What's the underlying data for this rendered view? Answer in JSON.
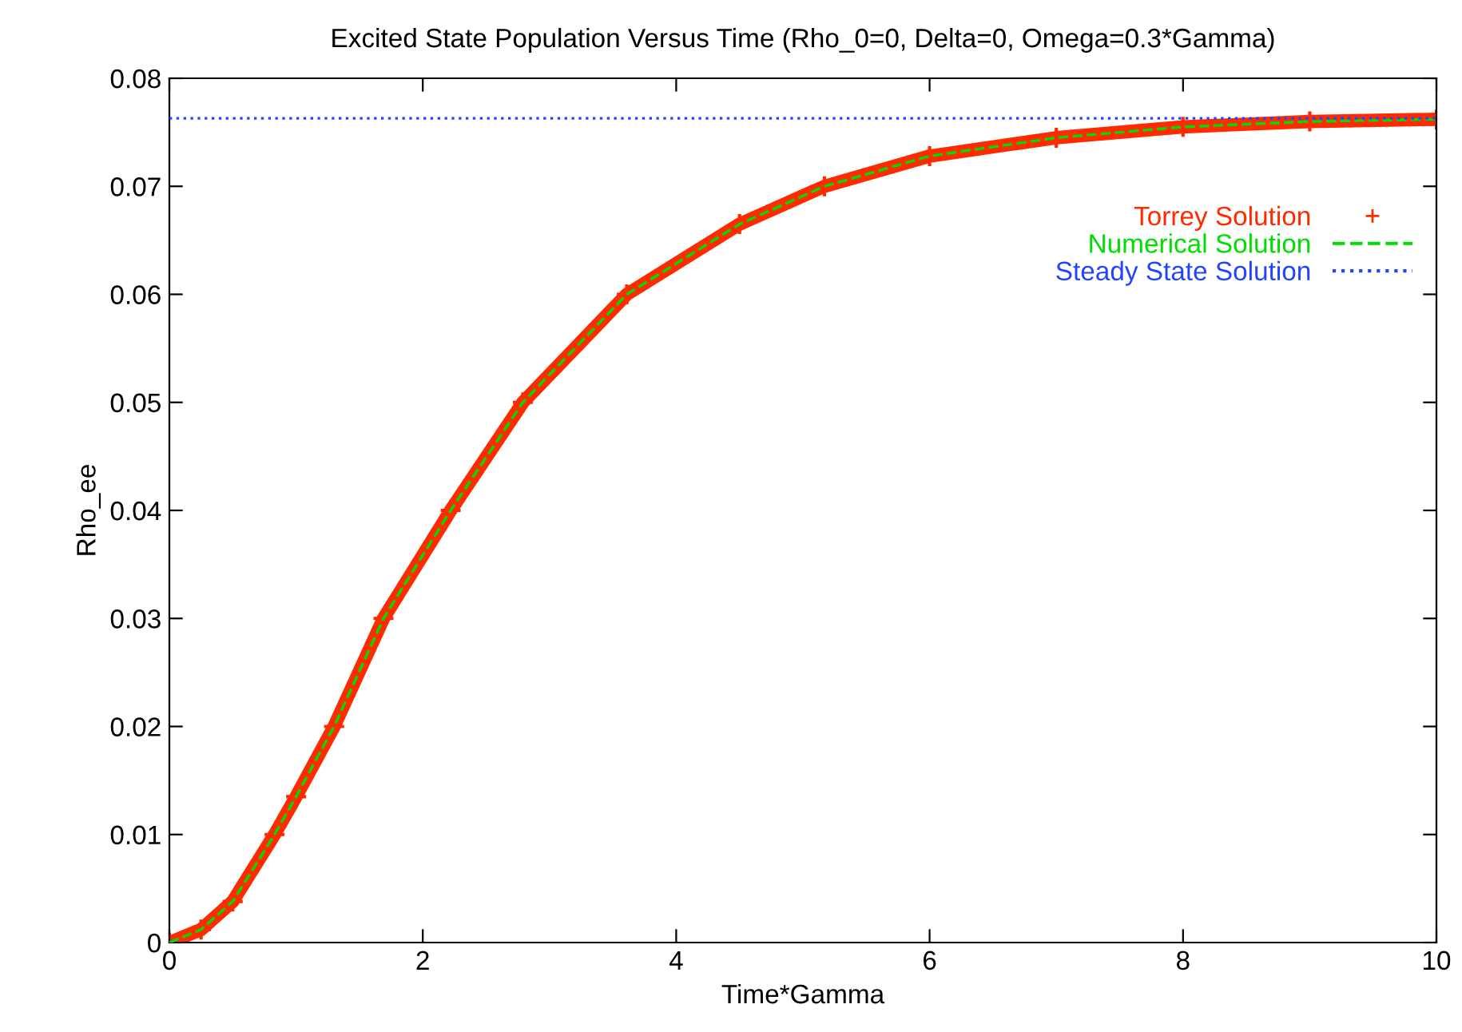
{
  "chart_data": {
    "type": "line",
    "title": "Excited State Population Versus Time (Rho_0=0, Delta=0, Omega=0.3*Gamma)",
    "xlabel": "Time*Gamma",
    "ylabel": "Rho_ee",
    "x": [
      0,
      0.25,
      0.5,
      0.83,
      1,
      1.3,
      1.69,
      2.22,
      2.79,
      3.61,
      4.5,
      5.17,
      6,
      7,
      8,
      9,
      10
    ],
    "series": [
      {
        "name": "Torrey Solution",
        "type": "scatter",
        "marker": "cross",
        "color": "#ff2a00",
        "values": [
          0,
          0.0012,
          0.0038,
          0.01,
          0.0135,
          0.02,
          0.03,
          0.04,
          0.05,
          0.06,
          0.0665,
          0.07,
          0.0728,
          0.0745,
          0.0755,
          0.076,
          0.0762
        ]
      },
      {
        "name": "Numerical Solution",
        "type": "line",
        "line_style": "dashed",
        "color": "#00dd00",
        "values": [
          0,
          0.0012,
          0.0038,
          0.01,
          0.0135,
          0.02,
          0.03,
          0.04,
          0.05,
          0.06,
          0.0665,
          0.07,
          0.0728,
          0.0745,
          0.0755,
          0.076,
          0.0762
        ]
      },
      {
        "name": "Steady State Solution",
        "type": "line",
        "line_style": "dotted",
        "color": "#2244ff",
        "x": [
          0,
          10
        ],
        "values": [
          0.0763,
          0.0763
        ]
      }
    ],
    "xlim": [
      0,
      10
    ],
    "ylim": [
      0,
      0.08
    ],
    "xticks": [
      0,
      2,
      4,
      6,
      8,
      10
    ],
    "yticks": [
      0,
      0.01,
      0.02,
      0.03,
      0.04,
      0.05,
      0.06,
      0.07,
      0.08
    ],
    "grid": false,
    "legend": "top right"
  }
}
